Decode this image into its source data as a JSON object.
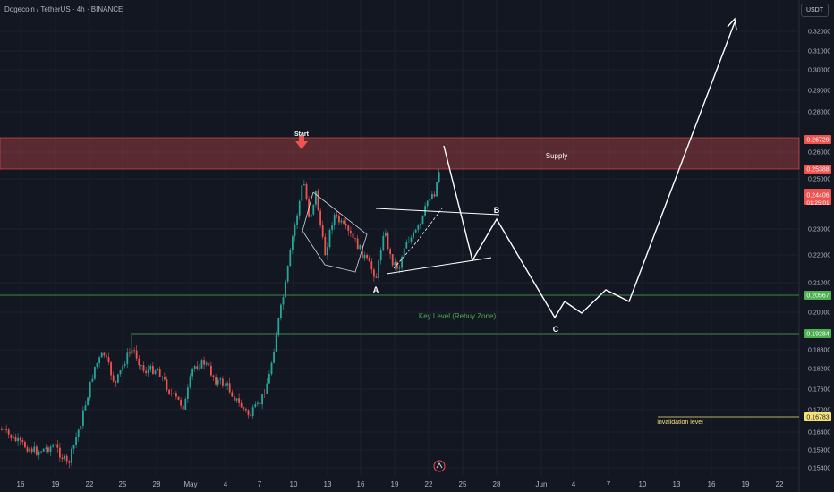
{
  "header": {
    "symbol": "Dogecoin / TetherUS · 4h · BINANCE",
    "currency": "USDT"
  },
  "colors": {
    "bg": "#131722",
    "up": "#26a69a",
    "down": "#ef5350",
    "supply": "#ef5350",
    "key": "#4caf50",
    "inval": "#f5e37a",
    "draw": "#ffffff"
  },
  "chart_data": {
    "type": "candlestick",
    "y_ticks": [
      "0.32000",
      "0.31000",
      "0.30000",
      "0.29000",
      "0.28000",
      "0.26000",
      "0.25000",
      "0.23000",
      "0.22000",
      "0.21000",
      "0.20000",
      "0.18800",
      "0.18200",
      "0.17600",
      "0.17000",
      "0.16400",
      "0.15900",
      "0.15400"
    ],
    "x_ticks": [
      "16",
      "19",
      "22",
      "25",
      "28",
      "May",
      "4",
      "7",
      "10",
      "13",
      "16",
      "19",
      "22",
      "25",
      "28",
      "Jun",
      "4",
      "7",
      "10",
      "13",
      "16",
      "19",
      "22"
    ],
    "price_tags": [
      {
        "value": "0.26729",
        "kind": "supply"
      },
      {
        "value": "0.25388",
        "kind": "supply"
      },
      {
        "value": "0.24406",
        "kind": "current",
        "sub": "01:25:01"
      },
      {
        "value": "0.20567",
        "kind": "key"
      },
      {
        "value": "0.19284",
        "kind": "key"
      },
      {
        "value": "0.16783",
        "kind": "inval"
      }
    ],
    "annotations": {
      "start": "Start",
      "supply": "Supply",
      "key": "Key Level (Rebuy Zone)",
      "inval": "invalidation level",
      "wave_a": "A",
      "wave_b": "B",
      "wave_c": "C"
    },
    "supply_zone": [
      0.25388,
      0.26729
    ],
    "key_levels": [
      0.20567,
      0.19284
    ],
    "invalidation": 0.16783
  }
}
